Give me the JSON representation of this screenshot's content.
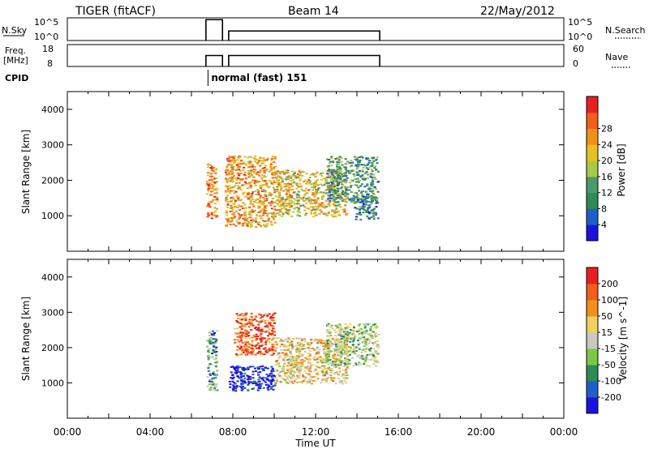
{
  "header": {
    "title": "TIGER (fitACF)",
    "beam": "Beam 14",
    "date": "22/May/2012"
  },
  "nsky_panel": {
    "label": "N.Sky",
    "left_ticks": [
      "10^5",
      "10^0"
    ],
    "right_ticks": [
      "10^5",
      "10^0"
    ],
    "right_label": "N.Search",
    "series": [
      {
        "x": [
          6.7,
          6.9,
          7.3,
          7.5
        ],
        "level": 0.92
      },
      {
        "x": [
          7.8,
          15.1
        ],
        "level": 0.42
      }
    ]
  },
  "freq_panel": {
    "label_line1": "Freq.",
    "label_line2": "[MHz]",
    "left_ticks": [
      "18",
      "8"
    ],
    "right_ticks": [
      "60",
      "0"
    ],
    "right_label": "Nave",
    "series": [
      {
        "x": [
          6.7,
          7.5
        ],
        "level": 0.5
      },
      {
        "x": [
          7.8,
          15.1
        ],
        "level": 0.5
      }
    ]
  },
  "cpid": {
    "label": "CPID",
    "text": "normal (fast) 151",
    "start_hour": 6.8
  },
  "chart_data": [
    {
      "type": "heatmap",
      "name": "Power",
      "xlabel": "",
      "ylabel": "Slant Range [km]",
      "xlim": [
        0,
        24
      ],
      "ylim": [
        0,
        4500
      ],
      "yticks": [
        "1000",
        "2000",
        "3000",
        "4000"
      ],
      "colorbar": {
        "label": "Power [dB]",
        "ticks": [
          "4",
          "8",
          "12",
          "16",
          "20",
          "24",
          "28"
        ],
        "colors": [
          "#1a12e0",
          "#1f5fc8",
          "#2e8b57",
          "#4a9a6a",
          "#a8c94a",
          "#e8c020",
          "#f09018",
          "#f06018",
          "#e82020"
        ]
      },
      "regions": [
        {
          "x": [
            6.7,
            7.2
          ],
          "y": [
            900,
            2500
          ],
          "level": 0.75
        },
        {
          "x": [
            7.6,
            10.0
          ],
          "y": [
            700,
            2700
          ],
          "level": 0.7
        },
        {
          "x": [
            10.0,
            13.5
          ],
          "y": [
            1000,
            2300
          ],
          "level": 0.6
        },
        {
          "x": [
            12.5,
            15.0
          ],
          "y": [
            1400,
            2700
          ],
          "level": 0.35
        },
        {
          "x": [
            13.8,
            15.0
          ],
          "y": [
            900,
            1600
          ],
          "level": 0.3
        }
      ]
    },
    {
      "type": "heatmap",
      "name": "Velocity",
      "xlabel": "Time UT",
      "ylabel": "Slant Range [km]",
      "xlim": [
        0,
        24
      ],
      "ylim": [
        0,
        4500
      ],
      "xticks": [
        "00:00",
        "04:00",
        "08:00",
        "12:00",
        "16:00",
        "20:00",
        "00:00"
      ],
      "yticks": [
        "1000",
        "2000",
        "3000",
        "4000"
      ],
      "colorbar": {
        "label": "Velocity [m s^-1]",
        "ticks": [
          "200",
          "100",
          "50",
          "15",
          "-15",
          "-50",
          "-100",
          "-200"
        ],
        "colors": [
          "#1a12e0",
          "#1f5fc8",
          "#2e8b57",
          "#7ac843",
          "#c8c8c0",
          "#f0d060",
          "#f09018",
          "#f06018",
          "#e82020"
        ]
      },
      "regions": [
        {
          "x": [
            6.7,
            7.2
          ],
          "y": [
            800,
            2500
          ],
          "level": 0.3
        },
        {
          "x": [
            7.8,
            10.0
          ],
          "y": [
            800,
            1500
          ],
          "level": 0.05
        },
        {
          "x": [
            8.0,
            10.0
          ],
          "y": [
            1800,
            3000
          ],
          "level": 0.85
        },
        {
          "x": [
            10.0,
            13.5
          ],
          "y": [
            1000,
            2300
          ],
          "level": 0.6
        },
        {
          "x": [
            12.5,
            15.0
          ],
          "y": [
            1500,
            2700
          ],
          "level": 0.45
        }
      ]
    }
  ]
}
